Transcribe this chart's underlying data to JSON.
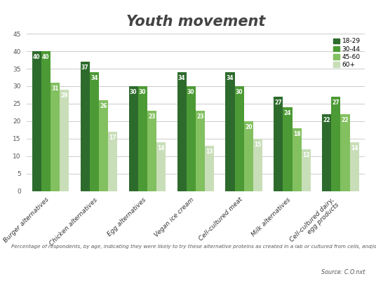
{
  "title": "Youth movement",
  "categories": [
    "Burger alternatives",
    "Chicken alternatives",
    "Egg alternatives",
    "Vegan ice cream",
    "Cell-cultured meat",
    "Milk alternatives",
    "Cell-cultured dairy,\negg products"
  ],
  "age_groups": [
    "18-29",
    "30-44",
    "45-60",
    "60+"
  ],
  "values": {
    "18-29": [
      40,
      37,
      30,
      34,
      34,
      27,
      22
    ],
    "30-44": [
      40,
      34,
      30,
      30,
      30,
      24,
      27
    ],
    "45-60": [
      31,
      26,
      23,
      23,
      20,
      18,
      22
    ],
    "60+": [
      29,
      17,
      14,
      13,
      15,
      12,
      14
    ]
  },
  "colors": {
    "18-29": "#2d6b2d",
    "30-44": "#4c9a35",
    "45-60": "#82c060",
    "60+": "#c8deb8"
  },
  "ylim": [
    0,
    45
  ],
  "yticks": [
    0,
    5,
    10,
    15,
    20,
    25,
    30,
    35,
    40,
    45
  ],
  "footnote": "Percentage of respondents, by age, indicating they were likely to try these alternative proteins as created in a lab or cultured from cells, and/or using enzymes",
  "source": "Source: C.O.nxt",
  "background_color": "#ffffff",
  "grid_color": "#cccccc",
  "bar_width": 0.19,
  "title_fontsize": 15,
  "label_fontsize": 5.5,
  "tick_fontsize": 6.5,
  "legend_fontsize": 6.5,
  "footnote_fontsize": 5.2,
  "source_fontsize": 5.8
}
